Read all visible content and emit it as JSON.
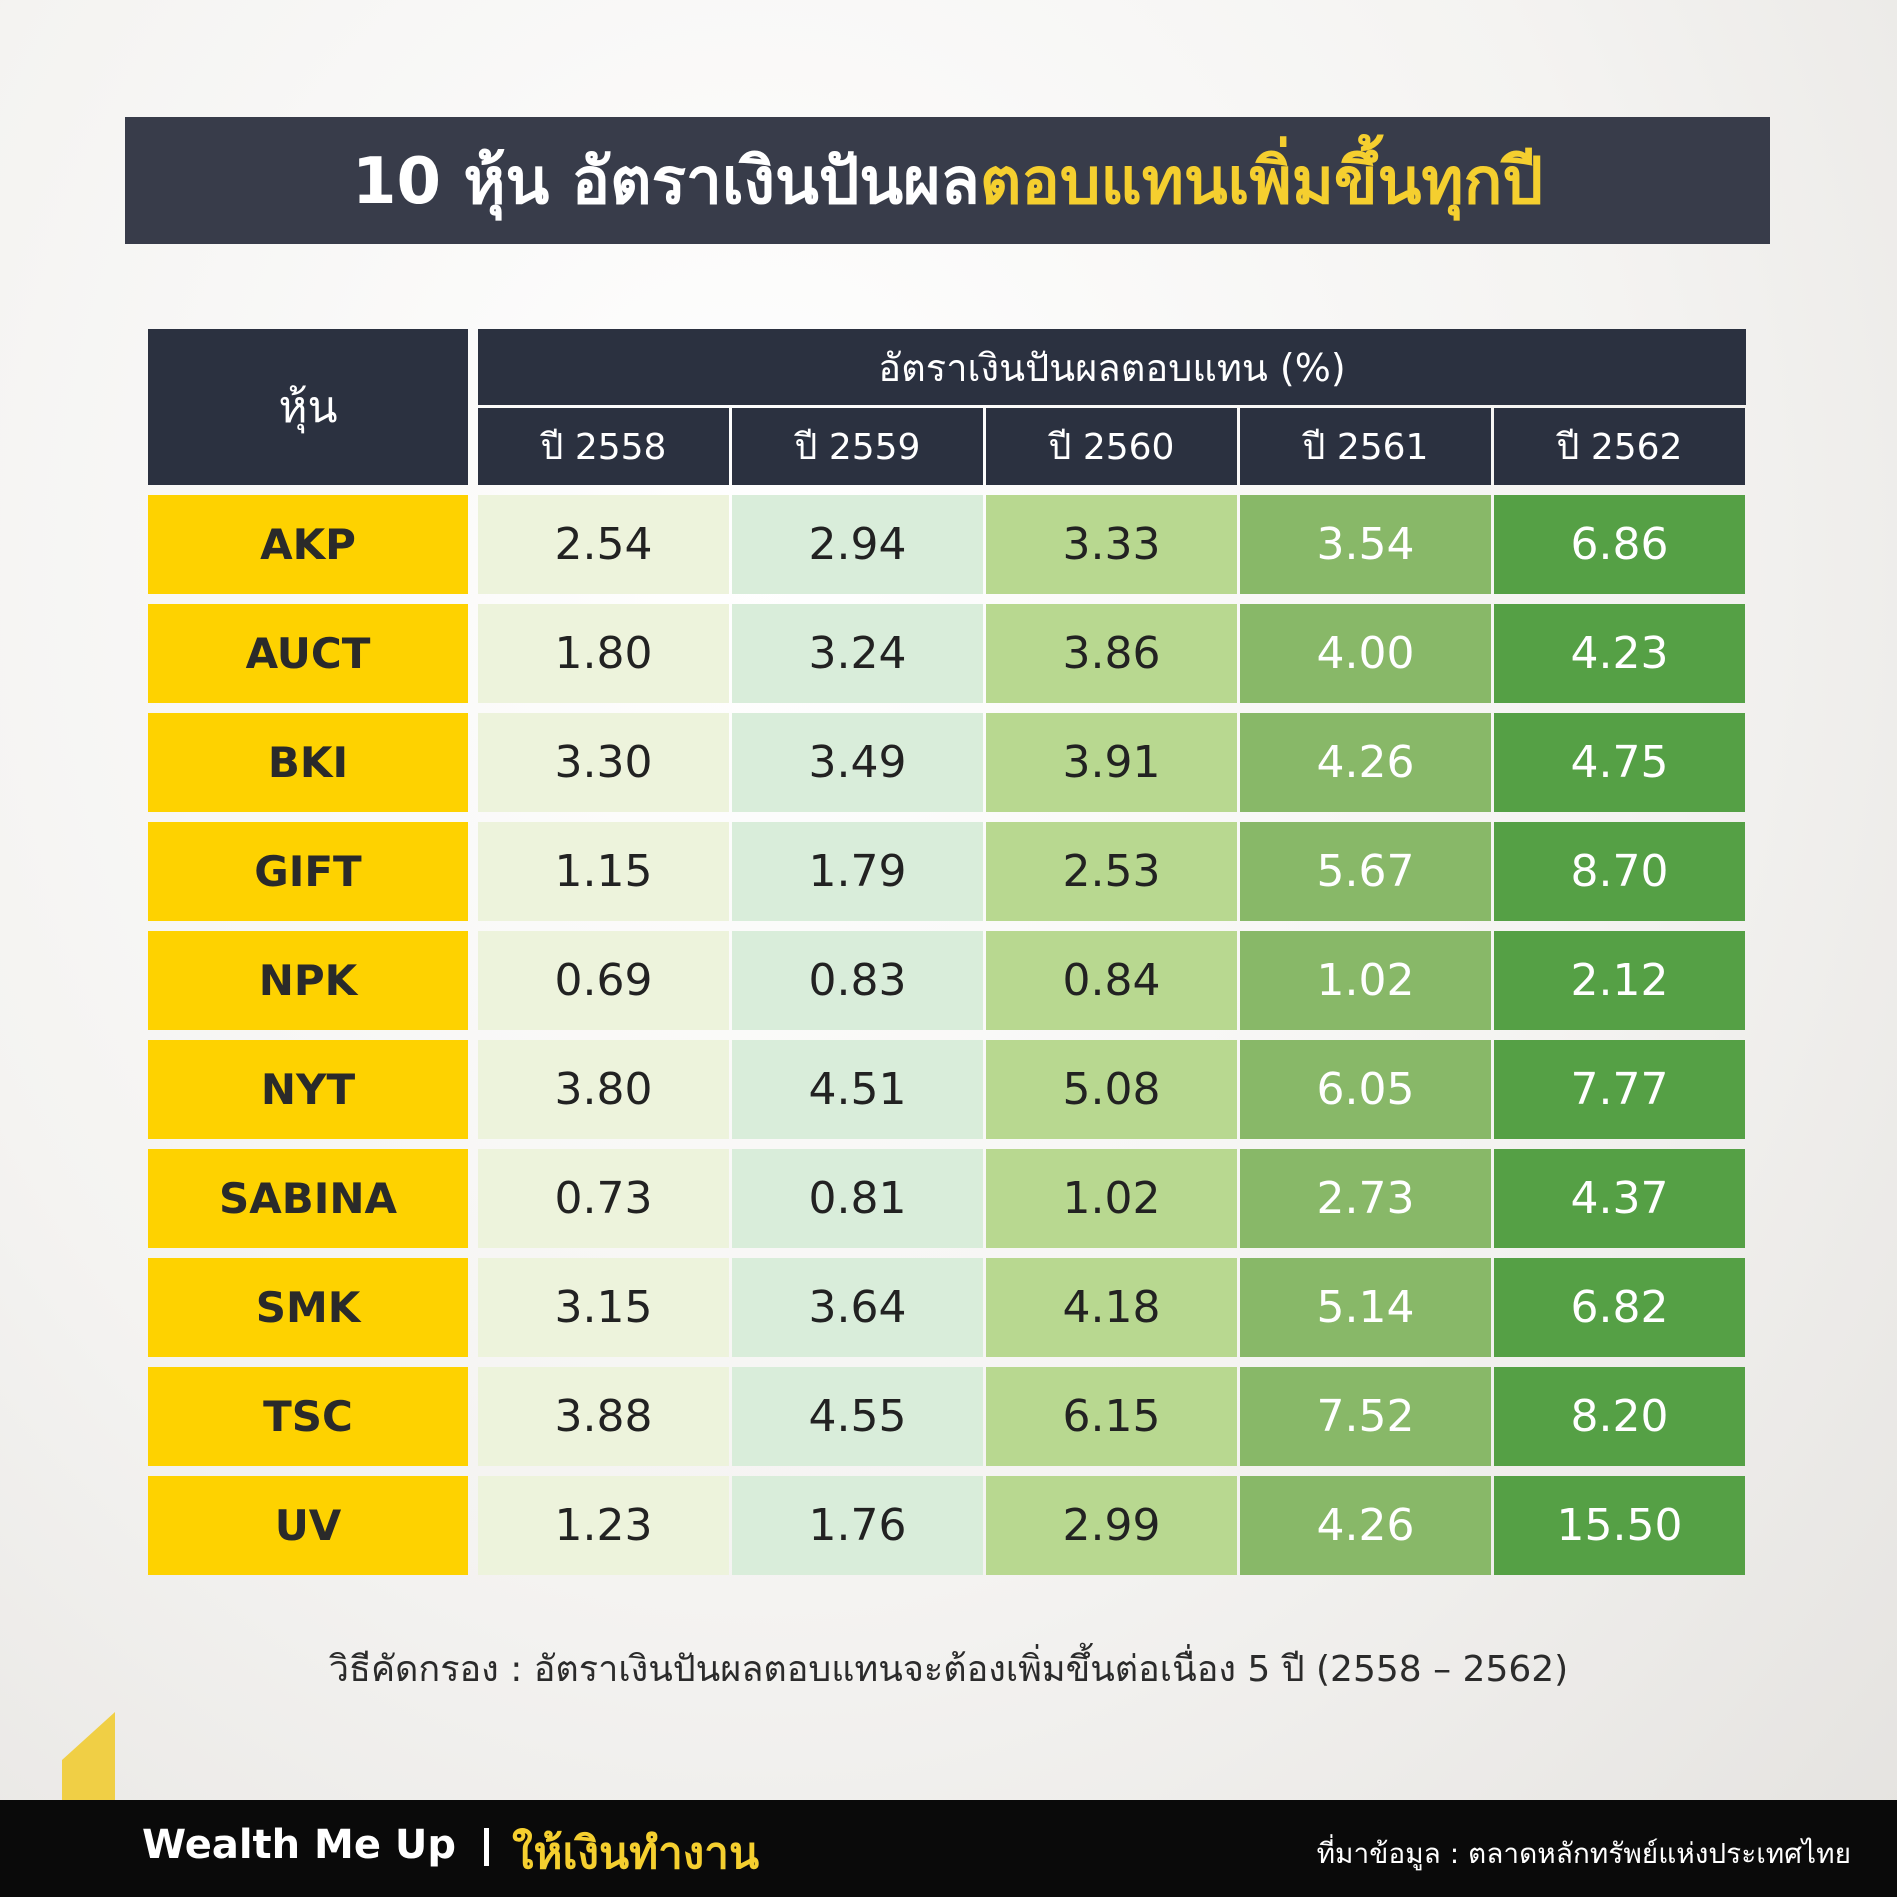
{
  "header": {
    "title_main": "10 หุ้น อัตราเงินปันผล",
    "title_highlight": "ตอบแทนเพิ่มขึ้นทุกปี"
  },
  "table": {
    "stock_header": "หุ้น",
    "group_header": "อัตราเงินปันผลตอบแทน (%)",
    "columns": [
      "ปี 2558",
      "ปี 2559",
      "ปี 2560",
      "ปี 2561",
      "ปี 2562"
    ],
    "rows": [
      [
        "AKP",
        "2.54",
        "2.94",
        "3.33",
        "3.54",
        "6.86"
      ],
      [
        "AUCT",
        "1.80",
        "3.24",
        "3.86",
        "4.00",
        "4.23"
      ],
      [
        "BKI",
        "3.30",
        "3.49",
        "3.91",
        "4.26",
        "4.75"
      ],
      [
        "GIFT",
        "1.15",
        "1.79",
        "2.53",
        "5.67",
        "8.70"
      ],
      [
        "NPK",
        "0.69",
        "0.83",
        "0.84",
        "1.02",
        "2.12"
      ],
      [
        "NYT",
        "3.80",
        "4.51",
        "5.08",
        "6.05",
        "7.77"
      ],
      [
        "SABINA",
        "0.73",
        "0.81",
        "1.02",
        "2.73",
        "4.37"
      ],
      [
        "SMK",
        "3.15",
        "3.64",
        "4.18",
        "5.14",
        "6.82"
      ],
      [
        "TSC",
        "3.88",
        "4.55",
        "6.15",
        "7.52",
        "8.20"
      ],
      [
        "UV",
        "1.23",
        "1.76",
        "2.99",
        "4.26",
        "15.50"
      ]
    ]
  },
  "note": "วิธีคัดกรอง : อัตราเงินปันผลตอบแทนจะต้องเพิ่มขึ้นต่อเนื่อง 5 ปี (2558 – 2562)",
  "footer": {
    "brand": "Wealth Me Up",
    "tagline": "ให้เงินทำงาน",
    "source": "ที่มาข้อมูล : ตลาดหลักทรัพย์แห่งประเทศไทย"
  }
}
